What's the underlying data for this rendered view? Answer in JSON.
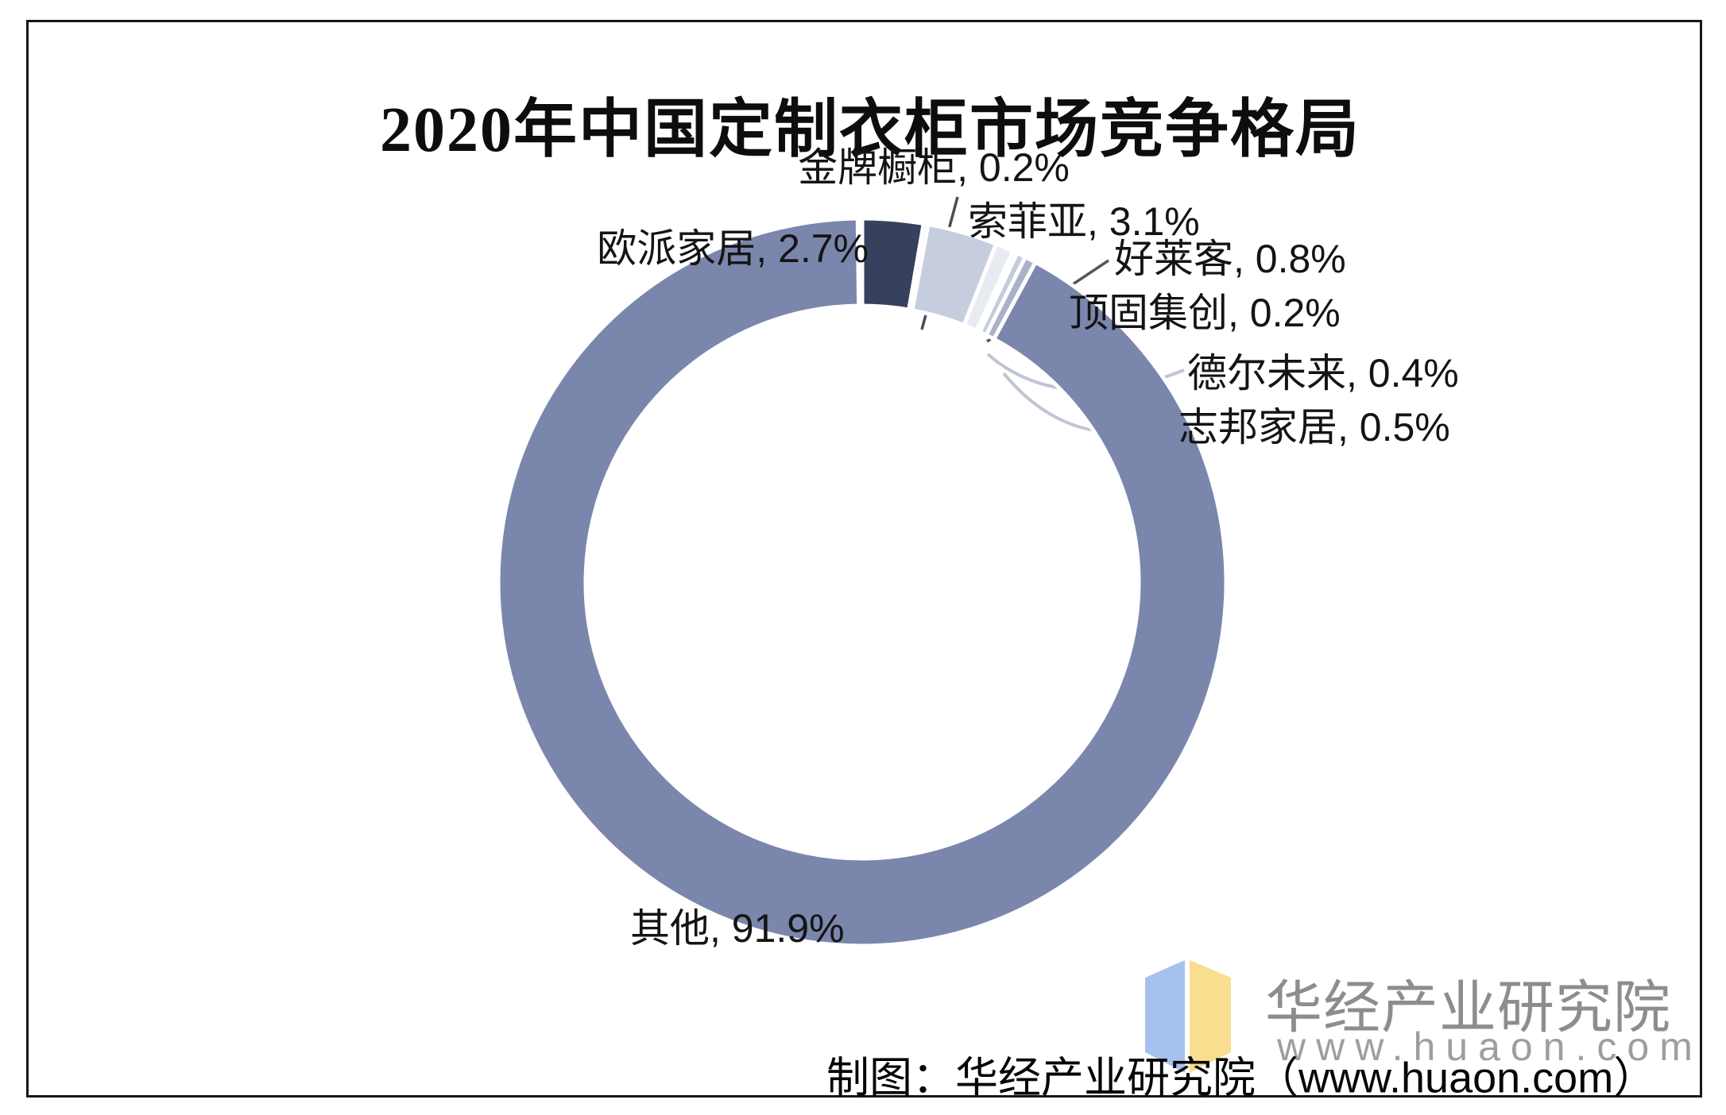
{
  "title": "2020年中国定制衣柜市场竞争格局",
  "chart_data": {
    "type": "pie",
    "subtype": "donut",
    "title": "2020年中国定制衣柜市场竞争格局",
    "unit": "%",
    "start_angle_deg": 0,
    "direction": "clockwise",
    "legend_position": "none",
    "total_percent": 100,
    "segments": [
      {
        "name": "欧派家居",
        "value": 2.7,
        "color": "#37405C"
      },
      {
        "name": "金牌橱柜",
        "value": 0.2,
        "color": "#DDE1EB"
      },
      {
        "name": "索菲亚",
        "value": 3.1,
        "color": "#C6CDDE"
      },
      {
        "name": "好莱客",
        "value": 0.8,
        "color": "#E9EBF3"
      },
      {
        "name": "顶固集创",
        "value": 0.2,
        "color": "#F0F1F6"
      },
      {
        "name": "德尔未来",
        "value": 0.4,
        "color": "#C4CBDC"
      },
      {
        "name": "志邦家居",
        "value": 0.5,
        "color": "#A9B2C9"
      },
      {
        "name": "其他",
        "value": 91.9,
        "color": "#7B86AD"
      }
    ],
    "labels": [
      "欧派家居, 2.7%",
      "金牌橱柜, 0.2%",
      "索菲亚, 3.1%",
      "好莱客, 0.8%",
      "顶固集创, 0.2%",
      "德尔未来, 0.4%",
      "志邦家居, 0.5%",
      "其他, 91.9%"
    ]
  },
  "watermark": {
    "brand": "华经产业研究院",
    "url": "www.huaon.com",
    "logo_left_color": "#A6C1EF",
    "logo_right_color": "#F8DE8E"
  },
  "footer": {
    "credit": "制图：华经产业研究院（www.huaon.com）"
  }
}
